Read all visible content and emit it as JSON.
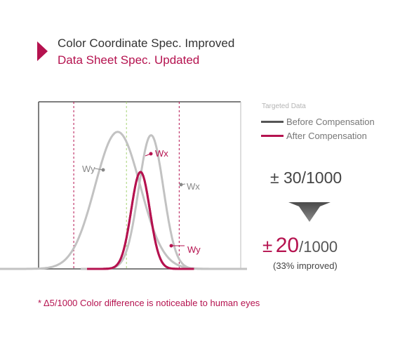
{
  "header": {
    "title": "Color Coordinate Spec. Improved",
    "subtitle": "Data Sheet Spec. Updated"
  },
  "chart_data": {
    "type": "line",
    "series": [
      {
        "name": "Before Compensation",
        "curves": [
          {
            "label": "Wy",
            "peak": -0.5,
            "height": 0.82,
            "width": 2.3
          },
          {
            "label": "Wx",
            "peak": 1.4,
            "height": 0.8,
            "width": 1.25
          }
        ]
      },
      {
        "name": "After Compensation",
        "curves": [
          {
            "label": "Wx",
            "peak": 0.8,
            "height": 0.58,
            "width": 0.95
          },
          {
            "label": "Wy",
            "peak": 0.8,
            "height": 0.58,
            "width": 0.95
          }
        ]
      }
    ],
    "spec_limits": {
      "before": 30,
      "after": 20,
      "unit": "/1000"
    },
    "grid": false
  },
  "legend": {
    "title": "Targeted Data",
    "items": [
      {
        "label": "Before Compensation",
        "color": "#555555"
      },
      {
        "label": "After Compensation",
        "color": "#b5124f"
      }
    ]
  },
  "spec": {
    "pm": "±",
    "before_value": "30/1000",
    "after_value": "20",
    "after_rest": "/1000",
    "improved_note": "(33% improved)"
  },
  "footnote": "*  Δ5/1000 Color difference is noticeable to human eyes",
  "colors": {
    "accent": "#b5124f",
    "before": "#c2c2c2",
    "center": "#a6d475",
    "frame": "#555555"
  }
}
